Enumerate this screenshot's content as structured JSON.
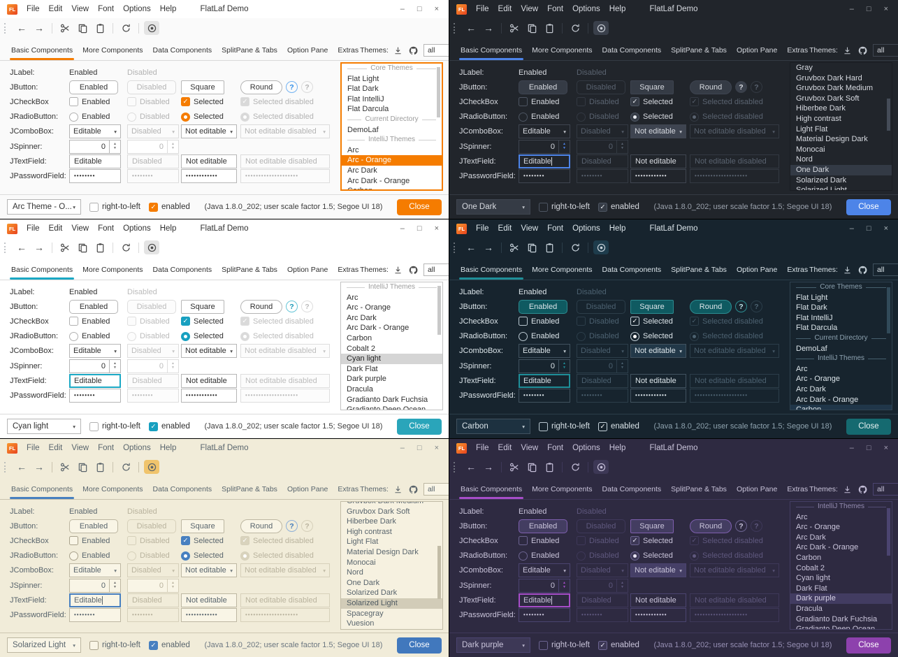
{
  "shared": {
    "logo": "FL",
    "window_title": "FlatLaf Demo",
    "menus": [
      "File",
      "Edit",
      "View",
      "Font",
      "Options",
      "Help"
    ],
    "tabs": [
      "Basic Components",
      "More Components",
      "Data Components",
      "SplitPane & Tabs",
      "Option Pane",
      "Extras"
    ],
    "active_tab": "Basic Components",
    "themes_label": "Themes:",
    "theme_filter": "all",
    "icons": {
      "back": "←",
      "forward": "→",
      "minimize": "–",
      "maximize": "□",
      "close": "×",
      "chevron": "▾",
      "spin_up": "▲",
      "spin_down": "▼",
      "help": "?"
    },
    "components": {
      "jlabel": {
        "name": "JLabel:",
        "enabled": "Enabled",
        "disabled": "Disabled"
      },
      "jbutton": {
        "name": "JButton:",
        "enabled": "Enabled",
        "disabled": "Disabled",
        "square": "Square",
        "round": "Round"
      },
      "jcheckbox": {
        "name": "JCheckBox",
        "enabled": "Enabled",
        "disabled": "Disabled",
        "selected": "Selected",
        "selected_disabled": "Selected disabled"
      },
      "jradiobutton": {
        "name": "JRadioButton:",
        "enabled": "Enabled",
        "disabled": "Disabled",
        "selected": "Selected",
        "selected_disabled": "Selected disabled"
      },
      "jcombobox": {
        "name": "JComboBox:",
        "editable": "Editable",
        "disabled": "Disabled",
        "not_editable": "Not editable",
        "not_editable_disabled": "Not editable disabled"
      },
      "jspinner": {
        "name": "JSpinner:",
        "value": "0",
        "value_disabled": "0"
      },
      "jtextfield": {
        "name": "JTextField:",
        "editable": "Editable",
        "disabled": "Disabled",
        "not_editable": "Not editable",
        "not_editable_disabled": "Not editable disabled"
      },
      "jpasswordfield": {
        "name": "JPasswordField:",
        "pw1": "••••••••",
        "pw2": "••••••••",
        "pw3": "••••••••••••",
        "pw4": "••••••••••••••••••••"
      }
    },
    "status": {
      "rtl_label": "right-to-left",
      "enabled_label": "enabled",
      "java_info": "(Java 1.8.0_202;  user scale factor 1.5; Segoe UI 18)",
      "close_label": "Close"
    }
  },
  "windows": [
    {
      "theme": "Arc - Orange",
      "css": "t-arcorange",
      "accent": "#F57C00",
      "close_color": "#F57C00",
      "status_combo": "Arc Theme - O...",
      "themes_list": [
        {
          "sep": "Core Themes"
        },
        {
          "label": "Flat Light"
        },
        {
          "label": "Flat Dark"
        },
        {
          "label": "Flat IntelliJ"
        },
        {
          "label": "Flat Darcula"
        },
        {
          "sep": "Current Directory"
        },
        {
          "label": "DemoLaf"
        },
        {
          "sep": "IntelliJ Themes"
        },
        {
          "label": "Arc"
        },
        {
          "label": "Arc - Orange",
          "selected": true
        },
        {
          "label": "Arc Dark"
        },
        {
          "label": "Arc Dark - Orange"
        },
        {
          "label": "Carbon"
        }
      ]
    },
    {
      "theme": "One Dark",
      "css": "t-onedark",
      "accent": "#4D84E8",
      "close_color": "#4D84E8",
      "status_combo": "One Dark",
      "themes_list": [
        {
          "label": "Gray"
        },
        {
          "label": "Gruvbox Dark Hard"
        },
        {
          "label": "Gruvbox Dark Medium"
        },
        {
          "label": "Gruvbox Dark Soft"
        },
        {
          "label": "Hiberbee Dark"
        },
        {
          "label": "High contrast"
        },
        {
          "label": "Light Flat"
        },
        {
          "label": "Material Design Dark"
        },
        {
          "label": "Monocai"
        },
        {
          "label": "Nord"
        },
        {
          "label": "One Dark",
          "selected": true
        },
        {
          "label": "Solarized Dark"
        },
        {
          "label": "Solarized Light"
        }
      ]
    },
    {
      "theme": "Cyan light",
      "css": "t-cyanlight",
      "accent": "#1BA8C4",
      "close_color": "#2AA5BA",
      "status_combo": "Cyan light",
      "themes_list": [
        {
          "sep": "IntelliJ Themes"
        },
        {
          "label": "Arc"
        },
        {
          "label": "Arc - Orange"
        },
        {
          "label": "Arc Dark"
        },
        {
          "label": "Arc Dark - Orange"
        },
        {
          "label": "Carbon"
        },
        {
          "label": "Cobalt 2"
        },
        {
          "label": "Cyan light",
          "selected": true
        },
        {
          "label": "Dark Flat"
        },
        {
          "label": "Dark purple"
        },
        {
          "label": "Dracula"
        },
        {
          "label": "Gradianto Dark Fuchsia"
        },
        {
          "label": "Gradianto Deep Ocean"
        }
      ]
    },
    {
      "theme": "Carbon",
      "css": "t-carbon",
      "accent": "#1F8F99",
      "close_color": "#156A70",
      "status_combo": "Carbon",
      "themes_list": [
        {
          "sep": "Core Themes"
        },
        {
          "label": "Flat Light"
        },
        {
          "label": "Flat Dark"
        },
        {
          "label": "Flat IntelliJ"
        },
        {
          "label": "Flat Darcula"
        },
        {
          "sep": "Current Directory"
        },
        {
          "label": "DemoLaf"
        },
        {
          "sep": "IntelliJ Themes"
        },
        {
          "label": "Arc"
        },
        {
          "label": "Arc - Orange"
        },
        {
          "label": "Arc Dark"
        },
        {
          "label": "Arc Dark - Orange"
        },
        {
          "label": "Carbon",
          "selected": true
        }
      ]
    },
    {
      "theme": "Solarized Light",
      "css": "t-solarized",
      "accent": "#4880C0",
      "close_color": "#4178BD",
      "status_combo": "Solarized Light",
      "themes_list": [
        {
          "label": "Gruvbox Dark Medium"
        },
        {
          "label": "Gruvbox Dark Soft"
        },
        {
          "label": "Hiberbee Dark"
        },
        {
          "label": "High contrast"
        },
        {
          "label": "Light Flat"
        },
        {
          "label": "Material Design Dark"
        },
        {
          "label": "Monocai"
        },
        {
          "label": "Nord"
        },
        {
          "label": "One Dark"
        },
        {
          "label": "Solarized Dark"
        },
        {
          "label": "Solarized Light",
          "selected": true
        },
        {
          "label": "Spacegray"
        },
        {
          "label": "Vuesion"
        }
      ]
    },
    {
      "theme": "Dark purple",
      "css": "t-darkpurple",
      "accent": "#A64DC8",
      "close_color": "#8D41AD",
      "status_combo": "Dark purple",
      "themes_list": [
        {
          "sep": "IntelliJ Themes"
        },
        {
          "label": "Arc"
        },
        {
          "label": "Arc - Orange"
        },
        {
          "label": "Arc Dark"
        },
        {
          "label": "Arc Dark - Orange"
        },
        {
          "label": "Carbon"
        },
        {
          "label": "Cobalt 2"
        },
        {
          "label": "Cyan light"
        },
        {
          "label": "Dark Flat"
        },
        {
          "label": "Dark purple",
          "selected": true
        },
        {
          "label": "Dracula"
        },
        {
          "label": "Gradianto Dark Fuchsia"
        },
        {
          "label": "Gradianto Deep Ocean"
        }
      ]
    }
  ]
}
